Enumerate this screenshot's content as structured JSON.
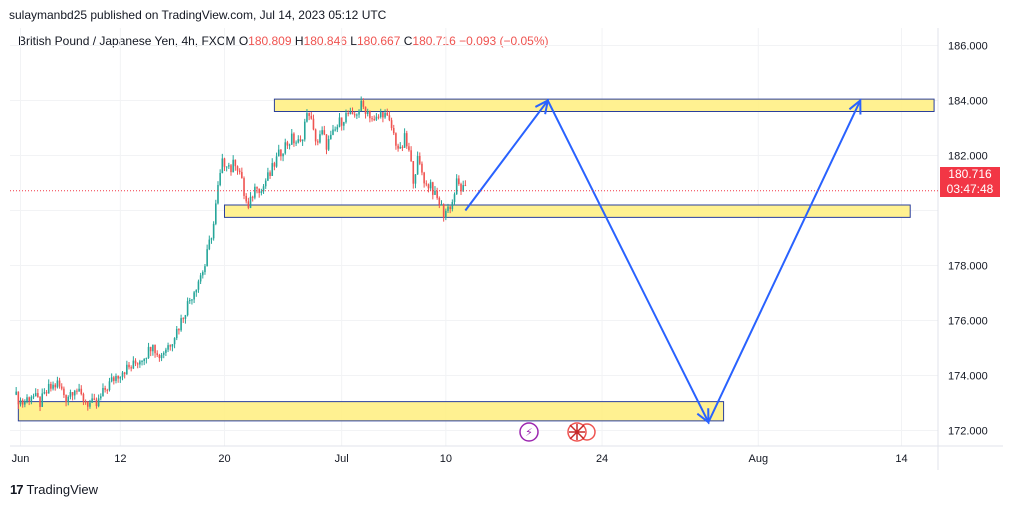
{
  "header": {
    "published": "sulaymanbd25 published on TradingView.com, Jul 14, 2023 05:12 UTC"
  },
  "legend": {
    "symbol": "British Pound / Japanese Yen, 4h, FXCM",
    "o_label": "O",
    "o_value": "180.809",
    "h_label": "H",
    "h_value": "180.846",
    "l_label": "L",
    "l_value": "180.667",
    "c_label": "C",
    "c_value": "180.716",
    "change": "−0.093 (−0.05%)"
  },
  "last_price": {
    "value": "180.716",
    "countdown": "03:47:48"
  },
  "footer": {
    "brand": "TradingView"
  },
  "colors": {
    "up": "#26a69a",
    "down": "#ef5350",
    "zone_fill": "#ffef85",
    "zone_border": "#2a3f9c",
    "arrow": "#2962ff",
    "price_line": "#f23645"
  },
  "chart_data": {
    "type": "candlestick",
    "symbol": "GBPJPY",
    "timeframe": "4h",
    "y_ticks": [
      172.0,
      174.0,
      176.0,
      178.0,
      180.0,
      182.0,
      184.0,
      186.0
    ],
    "y_tick_labels": [
      "172.000",
      "174.000",
      "176.000",
      "178.000",
      "",
      "182.000",
      "184.000",
      "186.000"
    ],
    "x_ticks": [
      {
        "label": "Jun",
        "bar": 3
      },
      {
        "label": "12",
        "bar": 49
      },
      {
        "label": "20",
        "bar": 97
      },
      {
        "label": "Jul",
        "bar": 151
      },
      {
        "label": "10",
        "bar": 199
      },
      {
        "label": "24",
        "bar": 271
      },
      {
        "label": "Aug",
        "bar": 343
      },
      {
        "label": "14",
        "bar": 409
      }
    ],
    "ylim": [
      171.0,
      186.2
    ],
    "last_price": 180.716,
    "price_path": [
      [
        0,
        173.3
      ],
      [
        4,
        173.0
      ],
      [
        8,
        173.3
      ],
      [
        12,
        173.0
      ],
      [
        16,
        173.5
      ],
      [
        20,
        173.7
      ],
      [
        24,
        173.2
      ],
      [
        28,
        173.6
      ],
      [
        30,
        173.3
      ],
      [
        34,
        173.0
      ],
      [
        38,
        172.9
      ],
      [
        42,
        173.5
      ],
      [
        46,
        173.9
      ],
      [
        50,
        174.2
      ],
      [
        54,
        174.3
      ],
      [
        58,
        174.6
      ],
      [
        62,
        174.9
      ],
      [
        64,
        175.3
      ],
      [
        66,
        174.7
      ],
      [
        68,
        174.8
      ],
      [
        72,
        175.2
      ],
      [
        76,
        175.8
      ],
      [
        80,
        176.6
      ],
      [
        84,
        177.3
      ],
      [
        88,
        178.0
      ],
      [
        90,
        178.8
      ],
      [
        92,
        179.5
      ],
      [
        94,
        180.8
      ],
      [
        96,
        181.7
      ],
      [
        98,
        181.8
      ],
      [
        100,
        181.5
      ],
      [
        102,
        181.8
      ],
      [
        104,
        181.4
      ],
      [
        106,
        180.6
      ],
      [
        108,
        180.0
      ],
      [
        110,
        180.6
      ],
      [
        112,
        181.0
      ],
      [
        114,
        180.7
      ],
      [
        116,
        181.1
      ],
      [
        118,
        181.3
      ],
      [
        120,
        181.7
      ],
      [
        124,
        182.3
      ],
      [
        128,
        182.6
      ],
      [
        132,
        182.4
      ],
      [
        134,
        183.2
      ],
      [
        136,
        183.6
      ],
      [
        138,
        182.8
      ],
      [
        140,
        182.5
      ],
      [
        142,
        182.8
      ],
      [
        144,
        182.4
      ],
      [
        146,
        182.6
      ],
      [
        148,
        182.9
      ],
      [
        150,
        183.2
      ],
      [
        152,
        183.4
      ],
      [
        154,
        183.5
      ],
      [
        156,
        183.3
      ],
      [
        158,
        183.6
      ],
      [
        160,
        183.8
      ],
      [
        162,
        183.7
      ],
      [
        164,
        183.5
      ],
      [
        166,
        183.2
      ],
      [
        168,
        183.4
      ],
      [
        170,
        183.6
      ],
      [
        172,
        183.3
      ],
      [
        174,
        183.0
      ],
      [
        176,
        182.5
      ],
      [
        178,
        182.1
      ],
      [
        180,
        182.6
      ],
      [
        182,
        182.1
      ],
      [
        184,
        181.2
      ],
      [
        186,
        181.8
      ],
      [
        188,
        181.4
      ],
      [
        190,
        180.9
      ],
      [
        192,
        181.0
      ],
      [
        194,
        180.5
      ],
      [
        196,
        180.3
      ],
      [
        198,
        179.9
      ],
      [
        200,
        180.1
      ],
      [
        202,
        180.3
      ],
      [
        204,
        181.0
      ],
      [
        206,
        180.8
      ],
      [
        208,
        180.7
      ]
    ],
    "zones": [
      {
        "bar_from": 97,
        "bar_to": 413,
        "price_low": 179.75,
        "price_high": 180.2
      },
      {
        "bar_from": 120,
        "bar_to": 424,
        "price_low": 183.6,
        "price_high": 184.05
      },
      {
        "bar_from": 2,
        "bar_to": 327,
        "price_low": 172.35,
        "price_high": 173.05
      }
    ],
    "projection": [
      [
        208,
        180.0
      ],
      [
        246,
        184.0
      ],
      [
        320,
        172.3
      ],
      [
        390,
        184.0
      ]
    ],
    "date_axis_y": 462
  }
}
